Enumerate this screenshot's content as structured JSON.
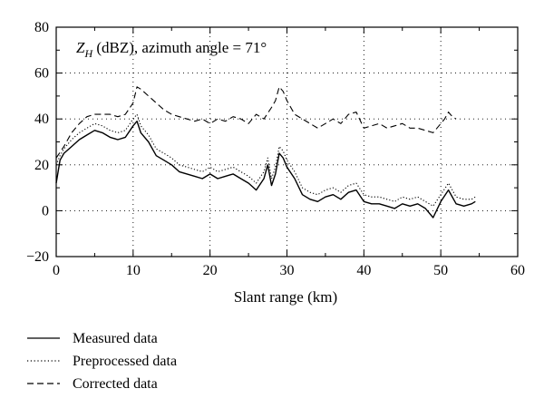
{
  "chart_data": {
    "type": "line",
    "title": "",
    "annotation": {
      "symbol": "Z",
      "subscript": "H",
      "rest": " (dBZ), azimuth angle = 71°"
    },
    "xlabel": "Slant range (km)",
    "ylabel": "",
    "xlim": [
      0,
      60
    ],
    "ylim": [
      -20,
      80
    ],
    "xticks": [
      0,
      10,
      20,
      30,
      40,
      50,
      60
    ],
    "yticks": [
      -20,
      0,
      20,
      40,
      60,
      80
    ],
    "grid": "dotted",
    "legend_position": "bottom-left-outside",
    "series": [
      {
        "name": "Measured data",
        "style": "solid",
        "x": [
          0,
          0.5,
          1,
          2,
          3,
          4,
          5,
          6,
          7,
          8,
          9,
          10,
          10.5,
          11,
          12,
          13,
          14,
          15,
          16,
          17,
          18,
          19,
          20,
          21,
          22,
          23,
          24,
          25,
          26,
          27,
          27.5,
          28,
          28.5,
          29,
          29.5,
          30,
          31,
          32,
          33,
          34,
          35,
          36,
          37,
          38,
          39,
          40,
          41,
          42,
          43,
          44,
          45,
          46,
          47,
          48,
          49,
          50,
          51,
          52,
          53,
          54,
          54.5
        ],
        "y": [
          12,
          22,
          25,
          28,
          31,
          33,
          35,
          34,
          32,
          31,
          32,
          37,
          39,
          34,
          30,
          24,
          22,
          20,
          17,
          16,
          15,
          14,
          16,
          14,
          15,
          16,
          14,
          12,
          9,
          14,
          20,
          11,
          16,
          25,
          23,
          19,
          14,
          7,
          5,
          4,
          6,
          7,
          5,
          8,
          9,
          4,
          3,
          3,
          2,
          1,
          3,
          2,
          3,
          1,
          -3,
          4,
          9,
          3,
          2,
          3,
          4
        ]
      },
      {
        "name": "Preprocessed data",
        "style": "dotted",
        "x": [
          0,
          0.5,
          1,
          2,
          3,
          4,
          5,
          6,
          7,
          8,
          9,
          10,
          10.5,
          11,
          12,
          13,
          14,
          15,
          16,
          17,
          18,
          19,
          20,
          21,
          22,
          23,
          24,
          25,
          26,
          27,
          27.5,
          28,
          28.5,
          29,
          29.5,
          30,
          31,
          32,
          33,
          34,
          35,
          36,
          37,
          38,
          39,
          40,
          41,
          42,
          43,
          44,
          45,
          46,
          47,
          48,
          49,
          50,
          51,
          52,
          53,
          54,
          54.5
        ],
        "y": [
          20,
          24,
          27,
          31,
          34,
          36,
          38,
          37,
          35,
          34,
          35,
          40,
          42,
          37,
          33,
          27,
          25,
          23,
          20,
          19,
          18,
          17,
          19,
          17,
          18,
          19,
          17,
          15,
          12,
          17,
          23,
          14,
          19,
          28,
          26,
          22,
          17,
          10,
          8,
          7,
          9,
          10,
          8,
          11,
          12,
          7,
          6,
          6,
          5,
          4,
          6,
          5,
          6,
          4,
          2,
          7,
          12,
          6,
          5,
          5,
          6
        ]
      },
      {
        "name": "Corrected data",
        "style": "dashed",
        "x": [
          0,
          1,
          2,
          3,
          4,
          5,
          6,
          7,
          8,
          9,
          10,
          10.5,
          11,
          12,
          13,
          14,
          15,
          16,
          17,
          18,
          19,
          20,
          21,
          22,
          23,
          24,
          25,
          26,
          27,
          28,
          28.5,
          29,
          29.5,
          30,
          31,
          32,
          33,
          34,
          35,
          36,
          37,
          38,
          39,
          40,
          41,
          42,
          43,
          44,
          45,
          46,
          47,
          48,
          49,
          50,
          50.5,
          51,
          51.5,
          52
        ],
        "y": [
          23,
          28,
          34,
          38,
          41,
          42,
          42,
          42,
          41,
          42,
          47,
          54,
          53,
          50,
          47,
          44,
          42,
          41,
          40,
          39,
          40,
          38,
          40,
          39,
          41,
          40,
          38,
          42,
          40,
          45,
          48,
          54,
          52,
          48,
          42,
          40,
          38,
          36,
          38,
          40,
          38,
          42,
          43,
          36,
          37,
          38,
          36,
          37,
          38,
          36,
          36,
          35,
          34,
          38,
          40,
          43,
          41,
          40
        ]
      }
    ]
  }
}
